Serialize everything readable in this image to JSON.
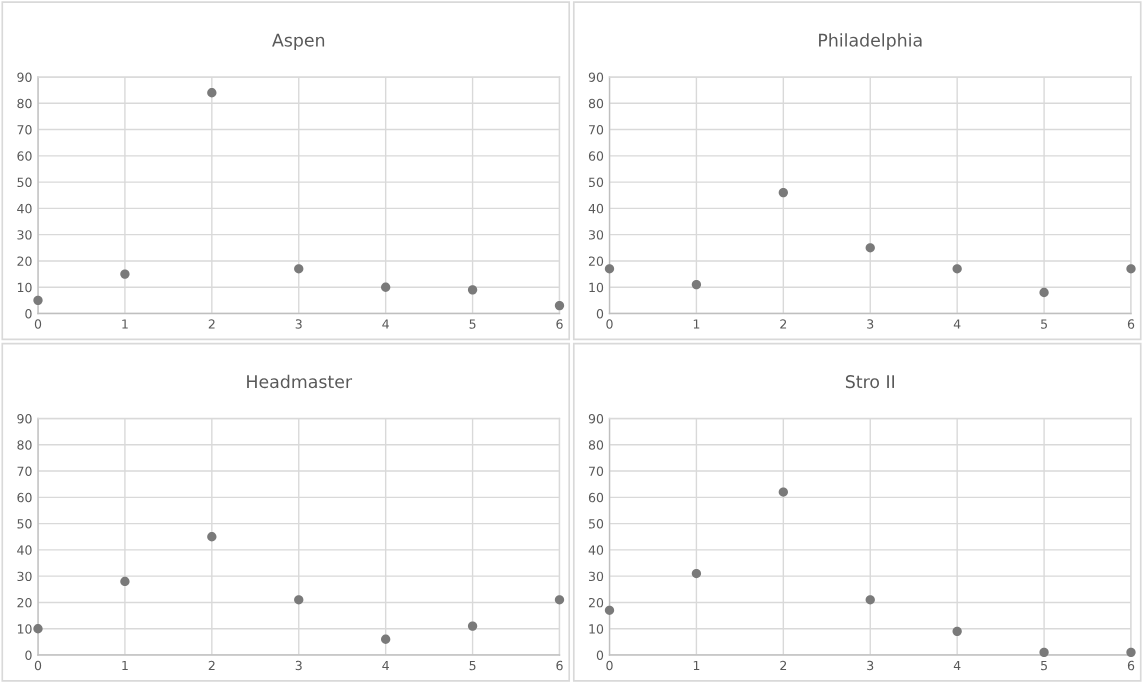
{
  "chart_data": [
    {
      "type": "scatter",
      "title": "Aspen",
      "x": [
        0,
        1,
        2,
        3,
        4,
        5,
        6
      ],
      "values": [
        5,
        15,
        84,
        17,
        10,
        9,
        3
      ],
      "color": "#7a7a7a",
      "xlim": [
        0,
        6
      ],
      "xticks": [
        0,
        1,
        2,
        3,
        4,
        5,
        6
      ],
      "ylim": [
        0,
        90
      ],
      "yticks": [
        0,
        10,
        20,
        30,
        40,
        50,
        60,
        70,
        80,
        90
      ],
      "grid": true,
      "marker": "circle"
    },
    {
      "type": "scatter",
      "title": "Philadelphia",
      "x": [
        0,
        1,
        2,
        3,
        4,
        5,
        6
      ],
      "values": [
        17,
        11,
        46,
        25,
        17,
        8,
        17
      ],
      "color": "#7a7a7a",
      "xlim": [
        0,
        6
      ],
      "xticks": [
        0,
        1,
        2,
        3,
        4,
        5,
        6
      ],
      "ylim": [
        0,
        90
      ],
      "yticks": [
        0,
        10,
        20,
        30,
        40,
        50,
        60,
        70,
        80,
        90
      ],
      "grid": true,
      "marker": "circle"
    },
    {
      "type": "scatter",
      "title": "Headmaster",
      "x": [
        0,
        1,
        2,
        3,
        4,
        5,
        6
      ],
      "values": [
        10,
        28,
        45,
        21,
        6,
        11,
        21
      ],
      "color": "#7a7a7a",
      "xlim": [
        0,
        6
      ],
      "xticks": [
        0,
        1,
        2,
        3,
        4,
        5,
        6
      ],
      "ylim": [
        0,
        90
      ],
      "yticks": [
        0,
        10,
        20,
        30,
        40,
        50,
        60,
        70,
        80,
        90
      ],
      "grid": true,
      "marker": "circle"
    },
    {
      "type": "scatter",
      "title": "Stro II",
      "x": [
        0,
        1,
        2,
        3,
        4,
        5,
        6
      ],
      "values": [
        17,
        31,
        62,
        21,
        9,
        1,
        1
      ],
      "color": "#7a7a7a",
      "xlim": [
        0,
        6
      ],
      "xticks": [
        0,
        1,
        2,
        3,
        4,
        5,
        6
      ],
      "ylim": [
        0,
        90
      ],
      "yticks": [
        0,
        10,
        20,
        30,
        40,
        50,
        60,
        70,
        80,
        90
      ],
      "grid": true,
      "marker": "circle"
    }
  ]
}
